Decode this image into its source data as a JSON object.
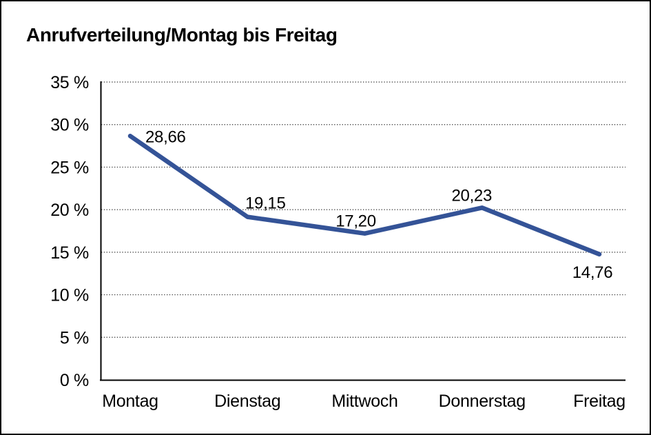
{
  "chart_data": {
    "type": "line",
    "title": "Anrufverteilung/Montag bis Freitag",
    "categories": [
      "Montag",
      "Dienstag",
      "Mittwoch",
      "Donnerstag",
      "Freitag"
    ],
    "series": [
      {
        "name": "Anrufverteilung",
        "values": [
          28.66,
          19.15,
          17.2,
          20.23,
          14.76
        ],
        "color": "#345397"
      }
    ],
    "value_labels": [
      "28,66",
      "19,15",
      "17,20",
      "20,23",
      "14,76"
    ],
    "ytick_labels": [
      "0 %",
      "5 %",
      "10 %",
      "15 %",
      "20 %",
      "25 %",
      "30 %",
      "35 %"
    ],
    "ylim": [
      0,
      35
    ],
    "ytick_step": 5,
    "grid": "dotted-horizontal",
    "legend": "none",
    "axis_color": "#000000",
    "grid_color": "#2b2b2b",
    "background_color": "#ffffff",
    "border_color": "#000000"
  }
}
